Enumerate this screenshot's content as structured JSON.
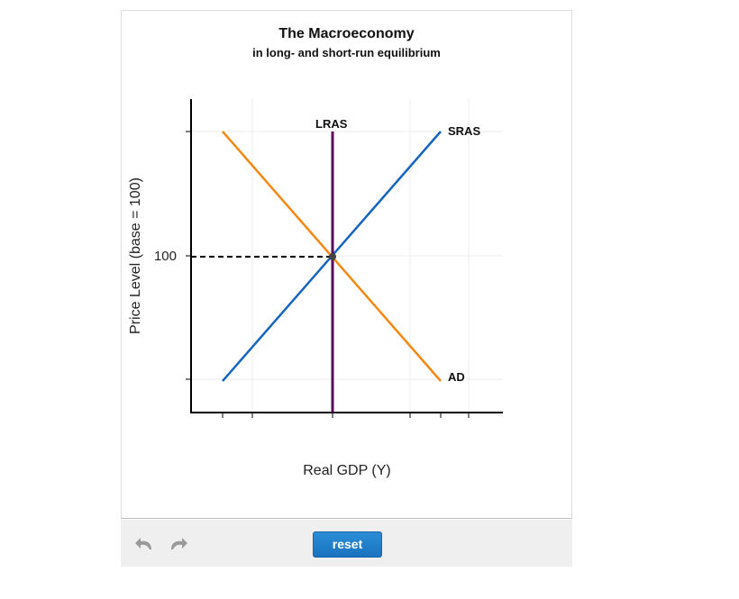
{
  "chart_data": {
    "type": "line",
    "title": "The Macroeconomy",
    "subtitle": "in long- and short-run equilibrium",
    "xlabel": "Real GDP (Y)",
    "ylabel": "Price Level (base = 100)",
    "y_tick_label": "100",
    "equilibrium": {
      "price_level": 100
    },
    "series": [
      {
        "name": "AD",
        "color": "#f5870f",
        "slope": "downward"
      },
      {
        "name": "SRAS",
        "color": "#1565c0",
        "slope": "upward"
      },
      {
        "name": "LRAS",
        "color": "#5a0a5e",
        "slope": "vertical"
      }
    ],
    "grid": true
  },
  "controls": {
    "reset_label": "reset",
    "undo_icon": "undo-arrow-icon",
    "redo_icon": "redo-arrow-icon"
  }
}
